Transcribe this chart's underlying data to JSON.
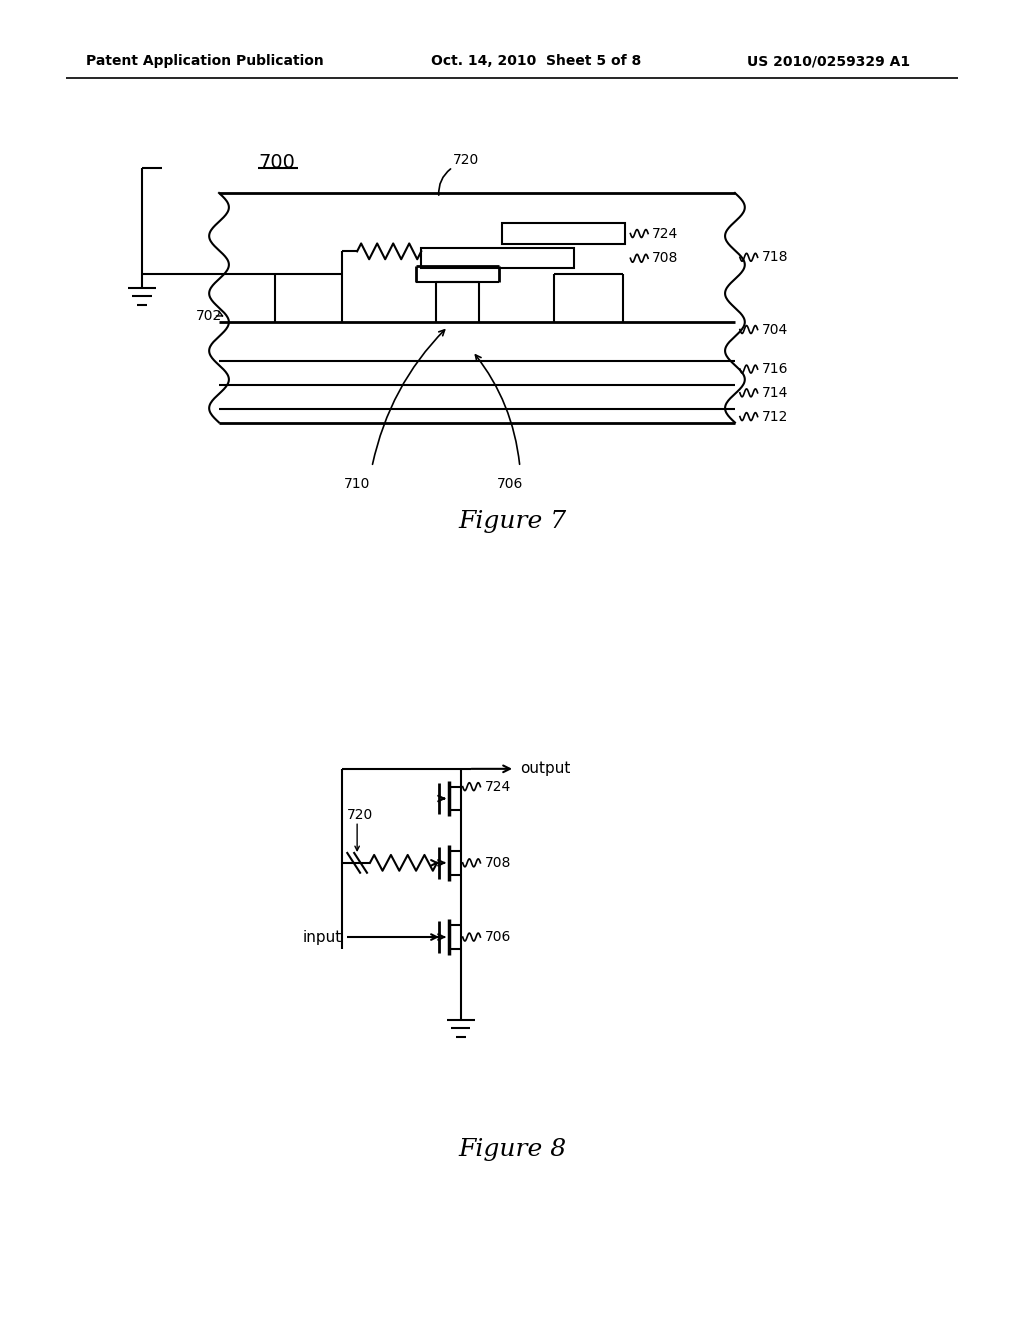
{
  "title_left": "Patent Application Publication",
  "title_mid": "Oct. 14, 2010  Sheet 5 of 8",
  "title_right": "US 2010/0259329 A1",
  "fig7_label": "700",
  "fig7_caption": "Figure 7",
  "fig8_caption": "Figure 8",
  "bg_color": "#ffffff",
  "line_color": "#000000"
}
